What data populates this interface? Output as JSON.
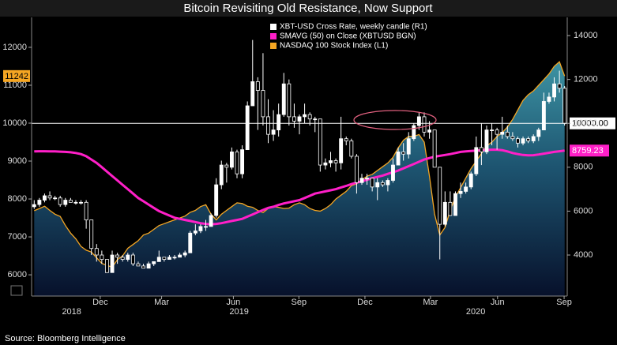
{
  "chart_data": {
    "type": "candlestick",
    "title": "Bitcoin Revisiting Old Resistance, Now Support",
    "source": "Source: Bloomberg Intelligence",
    "legend": "top-center",
    "grid": false,
    "xlim": [
      -0.5,
      102.5
    ],
    "xticks": [
      {
        "value": 12.7,
        "label": "Dec"
      },
      {
        "value": 24.5,
        "label": "Mar"
      },
      {
        "value": 38.3,
        "label": "Jun"
      },
      {
        "value": 50.9,
        "label": "Sep"
      },
      {
        "value": 63.6,
        "label": "Dec"
      },
      {
        "value": 76.2,
        "label": "Mar"
      },
      {
        "value": 89.1,
        "label": "Jun"
      },
      {
        "value": 101.9,
        "label": "Sep"
      }
    ],
    "year_labels": [
      {
        "value": 7.2,
        "label": "2018"
      },
      {
        "value": 39.4,
        "label": "2019"
      },
      {
        "value": 84.9,
        "label": "2020"
      }
    ],
    "ylim": [
      5440,
      12790
    ],
    "yticks": [
      6000,
      7000,
      8000,
      9000,
      10000,
      11000,
      12000
    ],
    "y2lim": [
      2130,
      14830
    ],
    "y2ticks": [
      4000,
      6000,
      8000,
      10000,
      12000,
      14000
    ],
    "reference_line": {
      "value": 10000,
      "label": "10000.00",
      "axis": "y2",
      "color": "#ffffff"
    },
    "series": [
      {
        "name": "XBT-USD Cross Rate, weekly candle (R1)",
        "type": "candle",
        "axis": "y2",
        "color": "#ffffff",
        "open": [
          6200,
          6300,
          6500,
          6700,
          6600,
          6600,
          6300,
          6500,
          6400,
          6400,
          6400,
          5600,
          4300,
          4000,
          3800,
          3200,
          4000,
          3900,
          3800,
          4000,
          3600,
          3500,
          3400,
          3600,
          3700,
          3900,
          3800,
          3900,
          3900,
          4000,
          4100,
          5000,
          5100,
          5300,
          5300,
          5800,
          7200,
          8100,
          8000,
          8700,
          7700,
          8800,
          10800,
          11900,
          11500,
          10300,
          9500,
          9700,
          10400,
          11800,
          10300,
          10100,
          10300,
          10400,
          10200,
          10200,
          8100,
          8200,
          8300,
          8200,
          9300,
          9200,
          8500,
          7300,
          7500,
          7500,
          7100,
          7300,
          7200,
          7400,
          8100,
          8700,
          8600,
          9300,
          9900,
          10300,
          9600,
          9700,
          8000,
          5400,
          6400,
          5800,
          6800,
          6900,
          7100,
          7700,
          8900,
          8700,
          9700,
          9700,
          9500,
          9600,
          9400,
          9300,
          9100,
          9300,
          9200,
          9400,
          9700,
          11000,
          11200,
          11800,
          11600
        ],
        "high": [
          6500,
          6600,
          6800,
          6900,
          6700,
          6700,
          6600,
          6600,
          6500,
          6500,
          6500,
          5600,
          4500,
          4200,
          3800,
          4200,
          4100,
          4000,
          4100,
          4100,
          3700,
          3600,
          3700,
          3700,
          4200,
          3900,
          4000,
          4000,
          4100,
          4200,
          5100,
          5400,
          5400,
          5600,
          5900,
          7500,
          8300,
          8200,
          8900,
          8800,
          9000,
          11000,
          13800,
          12100,
          13200,
          11100,
          10600,
          10900,
          12300,
          12000,
          10900,
          10400,
          10900,
          10500,
          10300,
          10200,
          8400,
          8700,
          8400,
          10300,
          9400,
          9300,
          8600,
          7700,
          7700,
          7500,
          7500,
          7400,
          7500,
          8400,
          8900,
          9100,
          9600,
          10000,
          10500,
          10500,
          10100,
          9700,
          8000,
          6900,
          6900,
          6900,
          7300,
          7300,
          7800,
          9400,
          10000,
          9900,
          10000,
          9800,
          10300,
          9900,
          9600,
          9400,
          9400,
          9400,
          9500,
          9800,
          11400,
          11400,
          12100,
          12400,
          11700
        ],
        "low": [
          6100,
          6200,
          6400,
          6500,
          6500,
          6200,
          6200,
          6400,
          6300,
          6300,
          5200,
          4000,
          3700,
          3600,
          3200,
          3200,
          3600,
          3700,
          3700,
          3500,
          3500,
          3400,
          3400,
          3500,
          3700,
          3700,
          3800,
          3800,
          3900,
          3900,
          4100,
          4900,
          5000,
          5100,
          5300,
          5700,
          7000,
          7300,
          7900,
          7500,
          7500,
          8800,
          10800,
          9700,
          9900,
          9100,
          9200,
          9400,
          10300,
          9900,
          9800,
          9500,
          10000,
          9900,
          9600,
          7800,
          7900,
          8000,
          7800,
          7900,
          9000,
          8400,
          6800,
          7200,
          7200,
          6900,
          6500,
          7100,
          6900,
          7300,
          8100,
          8300,
          8400,
          9200,
          9700,
          9400,
          9300,
          8000,
          3800,
          5300,
          5800,
          5800,
          6600,
          6800,
          7000,
          7600,
          8100,
          8600,
          9000,
          8800,
          9300,
          9300,
          9200,
          8900,
          9000,
          9100,
          9100,
          9200,
          9700,
          10900,
          11000,
          11400,
          9900
        ],
        "close": [
          6300,
          6500,
          6700,
          6600,
          6600,
          6300,
          6500,
          6400,
          6400,
          6400,
          5600,
          4300,
          4000,
          3800,
          3200,
          4000,
          3900,
          3800,
          4000,
          3600,
          3500,
          3400,
          3600,
          3700,
          3900,
          3800,
          3900,
          3900,
          4000,
          4100,
          5000,
          5100,
          5300,
          5300,
          5800,
          7200,
          8100,
          8000,
          8700,
          7700,
          8800,
          10800,
          11900,
          11500,
          10300,
          9500,
          9700,
          10400,
          11800,
          10300,
          10100,
          10300,
          10400,
          10200,
          10200,
          8100,
          8200,
          8300,
          8200,
          9300,
          9200,
          8500,
          7300,
          7500,
          7500,
          7100,
          7300,
          7200,
          7400,
          8100,
          8700,
          8600,
          9300,
          9900,
          10300,
          9600,
          9700,
          8000,
          5400,
          6400,
          5800,
          6800,
          6900,
          7100,
          7700,
          8900,
          8700,
          9700,
          9700,
          9500,
          9600,
          9400,
          9300,
          9100,
          9300,
          9200,
          9400,
          9700,
          11000,
          11200,
          11800,
          11600,
          10000
        ]
      },
      {
        "name": "SMAVG (50) on Close (XBTUSD BGN)",
        "type": "line",
        "axis": "y2",
        "color": "#ff1fc8",
        "last_tag": true,
        "values": [
          8720,
          8730,
          8730,
          8720,
          8720,
          8710,
          8700,
          8680,
          8650,
          8600,
          8500,
          8350,
          8200,
          8000,
          7800,
          7600,
          7400,
          7200,
          7000,
          6800,
          6600,
          6450,
          6300,
          6150,
          6000,
          5900,
          5800,
          5700,
          5650,
          5600,
          5550,
          5500,
          5450,
          5420,
          5400,
          5420,
          5450,
          5500,
          5550,
          5600,
          5650,
          5750,
          5850,
          5950,
          6050,
          6150,
          6200,
          6280,
          6350,
          6400,
          6450,
          6500,
          6600,
          6700,
          6800,
          6850,
          6900,
          6950,
          7000,
          7080,
          7150,
          7230,
          7300,
          7360,
          7430,
          7500,
          7560,
          7620,
          7700,
          7770,
          7850,
          7950,
          8050,
          8150,
          8250,
          8350,
          8420,
          8480,
          8520,
          8560,
          8600,
          8650,
          8700,
          8720,
          8740,
          8760,
          8780,
          8790,
          8800,
          8800,
          8780,
          8720,
          8650,
          8600,
          8560,
          8540,
          8550,
          8580,
          8620,
          8660,
          8700,
          8730,
          8759.23
        ]
      },
      {
        "name": "NASDAQ 100 Stock Index (L1)",
        "type": "area",
        "axis": "y",
        "color": "#f5a623",
        "last_tag": true,
        "values": [
          7690,
          7750,
          7810,
          7700,
          7600,
          7540,
          7300,
          7100,
          6950,
          6750,
          6650,
          6600,
          6450,
          6300,
          6250,
          6200,
          6400,
          6500,
          6700,
          6800,
          6900,
          7050,
          7100,
          7200,
          7300,
          7350,
          7400,
          7450,
          7500,
          7550,
          7650,
          7700,
          7800,
          7850,
          7600,
          7450,
          7600,
          7700,
          7800,
          7900,
          7880,
          7810,
          7780,
          7700,
          7640,
          7750,
          7800,
          7780,
          7750,
          7760,
          7850,
          7900,
          7850,
          7750,
          7700,
          7680,
          7750,
          7850,
          8000,
          8100,
          8200,
          8350,
          8400,
          8500,
          8600,
          8650,
          8750,
          8850,
          8950,
          9100,
          9350,
          9550,
          9650,
          9650,
          9700,
          9500,
          8600,
          7600,
          7050,
          7250,
          7700,
          8050,
          8300,
          8550,
          8800,
          9000,
          9200,
          9400,
          9500,
          9650,
          9750,
          9900,
          10100,
          10350,
          10600,
          10750,
          10850,
          11000,
          11150,
          11300,
          11500,
          11620,
          11242
        ]
      }
    ]
  }
}
